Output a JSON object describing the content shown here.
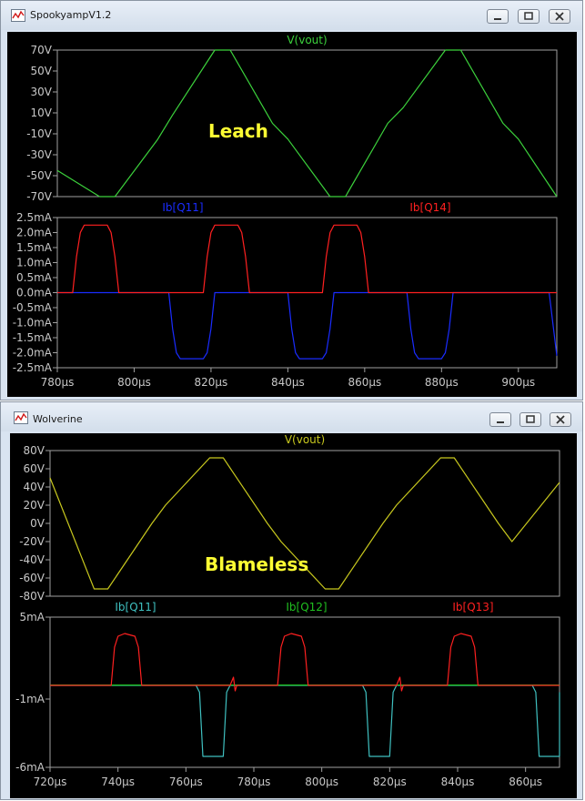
{
  "windows": [
    {
      "title": "SpookyampV1.2",
      "annotation": "Leach",
      "colors": {
        "annotation": "#ffff33",
        "trace_vout": "#3cd23c"
      },
      "chart_data": [
        {
          "type": "line",
          "title": "V(vout)",
          "ylim": [
            -70,
            70
          ],
          "yticks": [
            70,
            50,
            30,
            10,
            -10,
            -30,
            -50,
            -70
          ],
          "ytick_labels": [
            "70V",
            "50V",
            "30V",
            "10V",
            "-10V",
            "-30V",
            "-50V",
            "-70V"
          ],
          "xlim": [
            780,
            910
          ],
          "series": [
            {
              "name": "V(vout)",
              "color": "#3cd23c",
              "x": [
                780,
                791,
                795,
                806,
                810,
                821,
                825,
                836,
                840,
                851,
                855,
                866,
                870,
                881,
                885,
                896,
                900,
                910
              ],
              "y": [
                -45,
                -70,
                -70,
                -16,
                8,
                70,
                70,
                0,
                -15,
                -70,
                -70,
                0,
                15,
                70,
                70,
                0,
                -15,
                -70
              ]
            }
          ]
        },
        {
          "type": "line",
          "ylim": [
            -2.5,
            2.5
          ],
          "yticks": [
            2.5,
            2.0,
            1.5,
            1.0,
            0.5,
            0.0,
            -0.5,
            -1.0,
            -1.5,
            -2.0,
            -2.5
          ],
          "ytick_labels": [
            "2.5mA",
            "2.0mA",
            "1.5mA",
            "1.0mA",
            "0.5mA",
            "0.0mA",
            "-0.5mA",
            "-1.0mA",
            "-1.5mA",
            "-2.0mA",
            "-2.5mA"
          ],
          "xlim": [
            780,
            910
          ],
          "xticks": [
            780,
            800,
            820,
            840,
            860,
            880,
            900
          ],
          "xtick_labels": [
            "780µs",
            "800µs",
            "820µs",
            "840µs",
            "860µs",
            "880µs",
            "900µs"
          ],
          "series": [
            {
              "name": "Ib[Q11]",
              "color": "#1a2cff",
              "x": [
                780,
                809,
                810,
                811,
                812,
                818,
                819,
                820,
                821,
                840,
                841,
                842,
                843,
                849,
                850,
                851,
                852,
                871,
                872,
                873,
                874,
                880,
                881,
                882,
                883,
                908,
                910
              ],
              "y": [
                0,
                0,
                -1.2,
                -2.0,
                -2.2,
                -2.2,
                -2.0,
                -1.2,
                0,
                0,
                -1.2,
                -2.0,
                -2.2,
                -2.2,
                -2.0,
                -1.2,
                0,
                0,
                -1.2,
                -2.0,
                -2.2,
                -2.2,
                -2.0,
                -1.2,
                0,
                0,
                -2.1
              ]
            },
            {
              "name": "Ib[Q14]",
              "color": "#ff2020",
              "x": [
                780,
                784,
                785,
                786,
                787,
                793,
                794,
                795,
                796,
                818,
                819,
                820,
                821,
                827,
                828,
                829,
                830,
                849,
                850,
                851,
                852,
                858,
                859,
                860,
                861,
                910
              ],
              "y": [
                0,
                0,
                1.2,
                2.0,
                2.25,
                2.25,
                2.0,
                1.2,
                0,
                0,
                1.2,
                2.0,
                2.25,
                2.25,
                2.0,
                1.2,
                0,
                0,
                1.2,
                2.0,
                2.25,
                2.25,
                2.0,
                1.2,
                0,
                0
              ]
            }
          ]
        }
      ]
    },
    {
      "title": "Wolverine",
      "annotation": "Blameless",
      "colors": {
        "annotation": "#ffff33",
        "trace_vout": "#c8c81e"
      },
      "chart_data": [
        {
          "type": "line",
          "title": "V(vout)",
          "ylim": [
            -80,
            80
          ],
          "yticks": [
            80,
            60,
            40,
            20,
            0,
            -20,
            -40,
            -60,
            -80
          ],
          "ytick_labels": [
            "80V",
            "60V",
            "40V",
            "20V",
            "0V",
            "-20V",
            "-40V",
            "-60V",
            "-80V"
          ],
          "xlim": [
            720,
            870
          ],
          "series": [
            {
              "name": "V(vout)",
              "color": "#c8c81e",
              "x": [
                720,
                733,
                737,
                750,
                754,
                767,
                771,
                784,
                788,
                801,
                805,
                818,
                822,
                835,
                839,
                852,
                856,
                870
              ],
              "y": [
                50,
                -72,
                -72,
                0,
                20,
                72,
                72,
                0,
                -20,
                -72,
                -72,
                0,
                20,
                72,
                72,
                0,
                -20,
                45
              ]
            }
          ]
        },
        {
          "type": "line",
          "ylim": [
            -6,
            5
          ],
          "yticks": [
            5,
            -1,
            -6
          ],
          "ytick_labels": [
            "5mA",
            "-1mA",
            "-6mA"
          ],
          "xlim": [
            720,
            870
          ],
          "xticks": [
            720,
            740,
            760,
            780,
            800,
            820,
            840,
            860
          ],
          "xtick_labels": [
            "720µs",
            "740µs",
            "760µs",
            "780µs",
            "800µs",
            "820µs",
            "840µs",
            "860µs"
          ],
          "series": [
            {
              "name": "Ib[Q11]",
              "color": "#3fc0c0",
              "x": [
                720,
                763,
                764,
                765,
                771,
                772,
                773,
                812,
                813,
                814,
                820,
                821,
                822,
                862,
                863,
                864,
                870,
                870.5
              ],
              "y": [
                0,
                0,
                -0.5,
                -5.2,
                -5.2,
                -0.5,
                0,
                0,
                -0.5,
                -5.2,
                -5.2,
                -0.5,
                0,
                0,
                -0.5,
                -5.2,
                -5.2,
                -0.5
              ]
            },
            {
              "name": "Ib[Q12]",
              "color": "#20c020",
              "x": [
                720,
                870
              ],
              "y": [
                0.03,
                0.03
              ]
            },
            {
              "name": "Ib[Q13]",
              "color": "#ff2020",
              "x": [
                720,
                738,
                739,
                740,
                742,
                745,
                746,
                747,
                748,
                773,
                774,
                774.5,
                775,
                776,
                787,
                788,
                789,
                791,
                794,
                795,
                796,
                797,
                822,
                823,
                823.5,
                824,
                825,
                837,
                838,
                839,
                841,
                844,
                845,
                846,
                847,
                870,
                871
              ],
              "y": [
                0,
                0,
                2.8,
                3.6,
                3.8,
                3.6,
                2.8,
                0,
                0,
                0,
                0.6,
                -0.4,
                0,
                0,
                0,
                2.8,
                3.6,
                3.8,
                3.6,
                2.8,
                0,
                0,
                0,
                0.6,
                -0.4,
                0,
                0,
                0,
                2.8,
                3.6,
                3.8,
                3.6,
                2.8,
                0,
                0,
                0,
                0
              ]
            }
          ]
        }
      ]
    }
  ]
}
